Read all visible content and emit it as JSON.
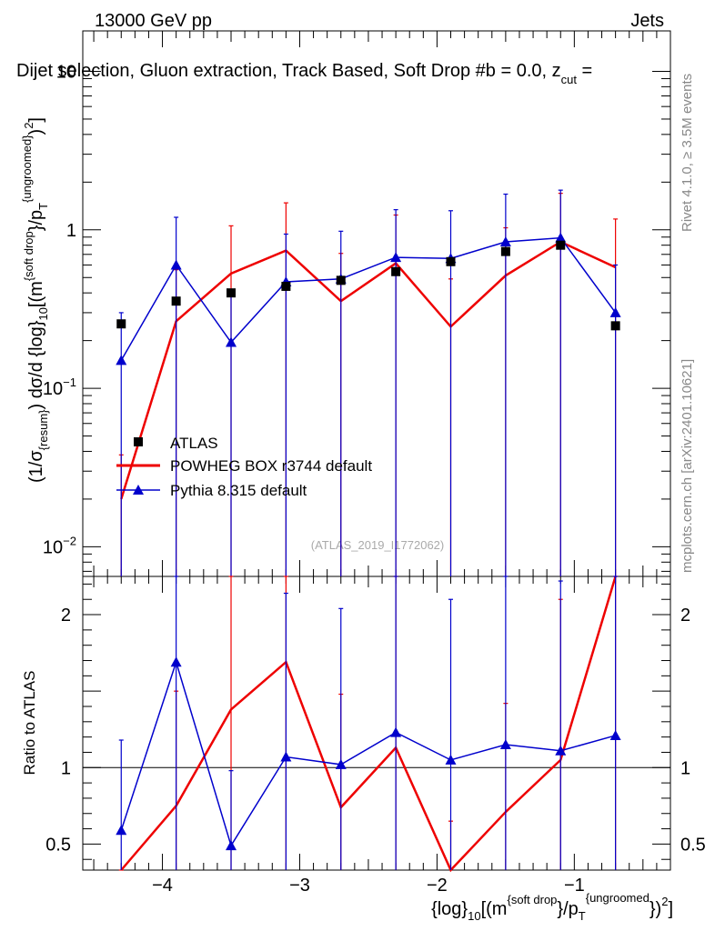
{
  "header": {
    "energy": "13000 GeV pp",
    "process": "Jets",
    "title": "Dijet selection, Gluon extraction, Track Based, Soft Drop #b = 0.0, z",
    "title_sub": "cut",
    "title_tail": " ="
  },
  "side": {
    "rivet": "Rivet 4.1.0, ≥ 3.5M events",
    "mcplots": "mcplots.cern.ch [arXiv:2401.10621]"
  },
  "watermark": "(ATLAS_2019_I1772062)",
  "legend": [
    {
      "label": "ATLAS",
      "color": "#000000",
      "marker": "square"
    },
    {
      "label": "POWHEG BOX r3744 default",
      "color": "#ee0000",
      "marker": "line"
    },
    {
      "label": "Pythia 8.315 default",
      "color": "#0000cc",
      "marker": "triangle"
    }
  ],
  "axis_labels": {
    "y_main": "(1/σ_{resum}) dσ/d {log}_{10}[(m^{soft drop}/p_{T}^{ungroomed})^{2}]",
    "y_ratio": "Ratio to ATLAS",
    "x": "{log}_{10}[(m^{soft drop}/p_{T}^{ungroomed})^{2}]"
  },
  "chart_data": {
    "type": "scatter",
    "x": [
      -4.3,
      -3.9,
      -3.5,
      -3.1,
      -2.7,
      -2.3,
      -1.9,
      -1.5,
      -1.1,
      -0.7
    ],
    "xlim": [
      -4.58,
      -0.3
    ],
    "xticks": [
      -4,
      -3,
      -2,
      -1
    ],
    "xtick_labels": [
      "−4",
      "−3",
      "−2",
      "−1"
    ],
    "main": {
      "scale": "log",
      "ylim": [
        0.0065,
        18
      ],
      "yticks": [
        {
          "v": 0.01,
          "label": "10^{-2}"
        },
        {
          "v": 0.1,
          "label": "10^{-1}"
        },
        {
          "v": 1,
          "label": "1"
        },
        {
          "v": 10,
          "label": "10"
        }
      ],
      "series": [
        {
          "name": "ATLAS",
          "values": [
            0.255,
            0.355,
            0.4,
            0.44,
            0.48,
            0.545,
            0.63,
            0.73,
            0.8,
            0.248
          ]
        },
        {
          "name": "POWHEG BOX r3744 default",
          "values": [
            0.02,
            0.265,
            0.53,
            0.74,
            0.355,
            0.615,
            0.245,
            0.515,
            0.84,
            0.58
          ],
          "err_up": [
            0.038,
            0.56,
            1.06,
            1.48,
            0.71,
            1.24,
            0.49,
            1.03,
            1.7,
            1.17
          ],
          "err_dn": [
            0.0065,
            0.0065,
            0.0065,
            0.0065,
            0.0065,
            0.0065,
            0.0065,
            0.0065,
            0.0065,
            0.0065
          ]
        },
        {
          "name": "Pythia 8.315 default",
          "values": [
            0.15,
            0.6,
            0.195,
            0.47,
            0.49,
            0.67,
            0.66,
            0.84,
            0.89,
            0.3
          ],
          "err_up": [
            0.3,
            1.2,
            0.39,
            0.94,
            0.98,
            1.34,
            1.32,
            1.68,
            1.78,
            0.6
          ],
          "err_dn": [
            0.0065,
            0.0065,
            0.0065,
            0.0065,
            0.0065,
            0.0065,
            0.0065,
            0.0065,
            0.0065,
            0.0065
          ]
        }
      ]
    },
    "ratio": {
      "scale": "linear",
      "ylim": [
        0.33,
        2.25
      ],
      "yticks": [
        0.5,
        1,
        2
      ],
      "ytick_labels": [
        "0.5",
        "1",
        "2"
      ],
      "reference": 1,
      "series": [
        {
          "name": "POWHEG BOX r3744 default",
          "values": [
            0.08,
            0.75,
            1.38,
            1.69,
            0.74,
            1.13,
            0.33,
            0.71,
            1.05,
            2.27
          ],
          "err_up": [
            0.16,
            1.5,
            2.76,
            2.55,
            1.48,
            2.25,
            0.65,
            1.42,
            2.1,
            4.5
          ],
          "err_dn": [
            0.33,
            0.33,
            0.33,
            0.33,
            0.33,
            0.33,
            0.33,
            0.33,
            0.33,
            0.33
          ]
        },
        {
          "name": "Pythia 8.315 default",
          "values": [
            0.59,
            1.69,
            0.49,
            1.07,
            1.02,
            1.23,
            1.05,
            1.15,
            1.11,
            1.21
          ],
          "err_up": [
            1.18,
            3.3,
            0.98,
            2.14,
            2.04,
            2.46,
            2.1,
            2.3,
            2.22,
            2.42
          ],
          "err_dn": [
            0.33,
            0.33,
            0.33,
            0.33,
            0.33,
            0.33,
            0.33,
            0.33,
            0.33,
            0.33
          ]
        }
      ]
    }
  }
}
